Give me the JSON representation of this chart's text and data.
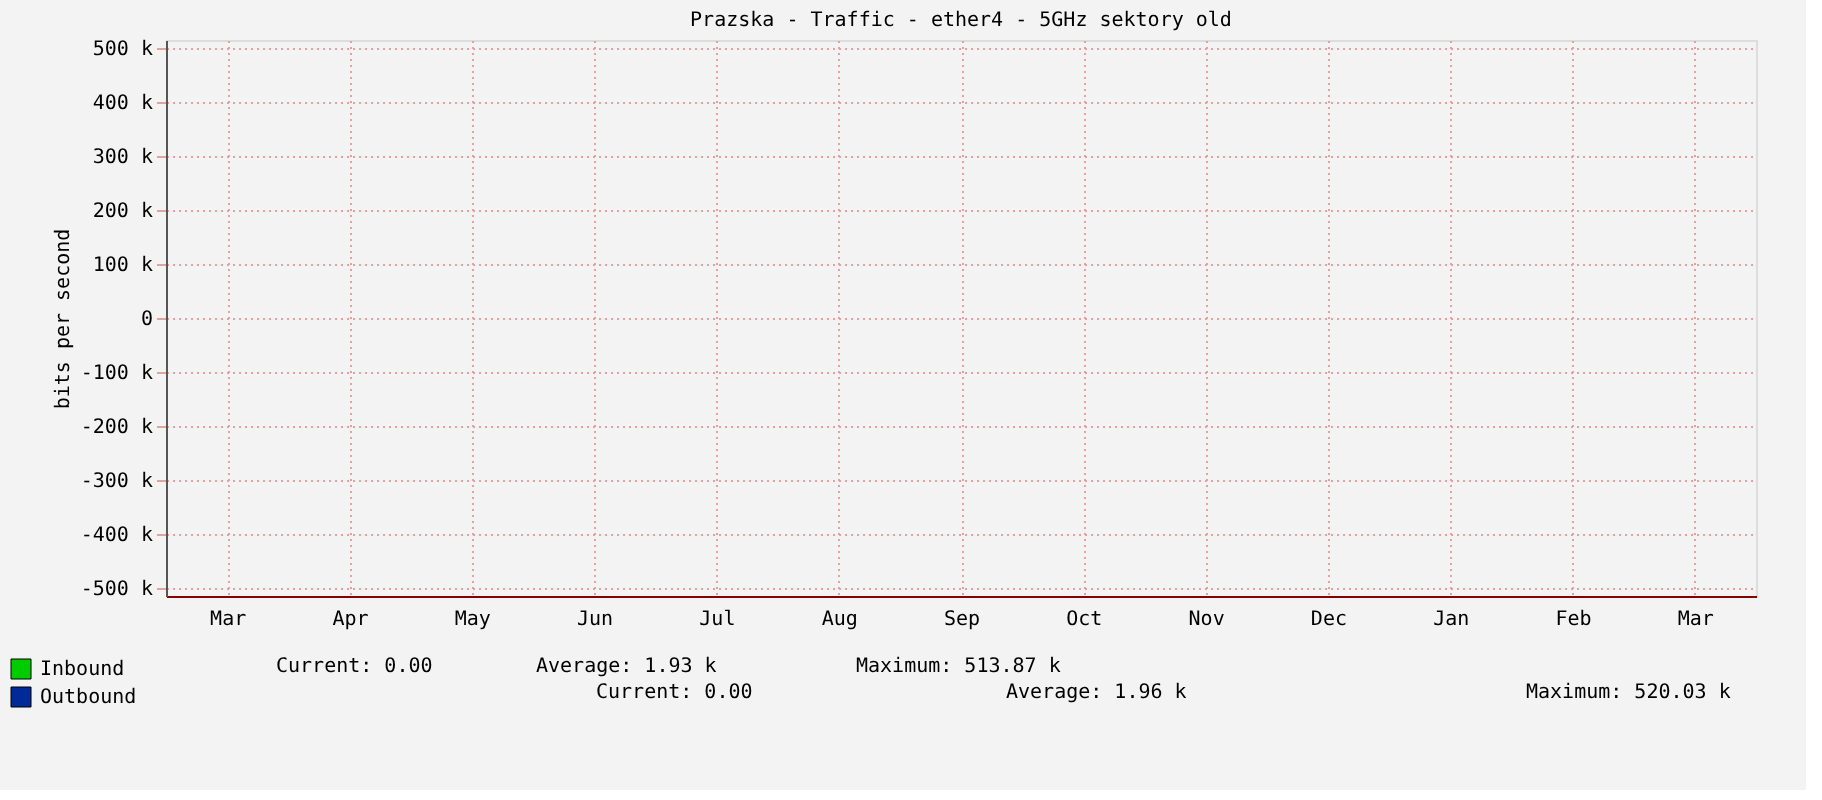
{
  "chart_data": {
    "type": "area",
    "title": "Prazska - Traffic - ether4 - 5GHz sektory old",
    "ylabel": "bits per second",
    "categories": [
      "Mar",
      "Apr",
      "May",
      "Jun",
      "Jul",
      "Aug",
      "Sep",
      "Oct",
      "Nov",
      "Dec",
      "Jan",
      "Feb",
      "Mar"
    ],
    "series": [
      {
        "name": "Inbound",
        "color": "#00cc00",
        "values": [
          null,
          null,
          null,
          null,
          null,
          null,
          null,
          null,
          null,
          null,
          null,
          null,
          null
        ]
      },
      {
        "name": "Outbound",
        "color": "#002a97",
        "values": [
          null,
          null,
          null,
          null,
          null,
          null,
          null,
          null,
          null,
          null,
          null,
          null,
          null
        ]
      }
    ],
    "ylim": [
      -515000,
      515000
    ],
    "yticks": [
      {
        "value": -500000,
        "label": "-500 k"
      },
      {
        "value": -400000,
        "label": "-400 k"
      },
      {
        "value": -300000,
        "label": "-300 k"
      },
      {
        "value": -200000,
        "label": "-200 k"
      },
      {
        "value": -100000,
        "label": "-100 k"
      },
      0,
      {
        "value": 100000,
        "label": "100 k"
      },
      {
        "value": 200000,
        "label": "200 k"
      },
      {
        "value": 300000,
        "label": "300 k"
      },
      {
        "value": 400000,
        "label": "400 k"
      },
      {
        "value": 500000,
        "label": "500 k"
      }
    ],
    "grid": true,
    "legend": "bottom left",
    "annotations": [
      "Current:     0.00",
      "Average:     1.93 k",
      "Maximum:  513.87 k",
      "Current:     0.00",
      "Average:     1.96 k",
      "Maximum:  520.03 k"
    ]
  }
}
